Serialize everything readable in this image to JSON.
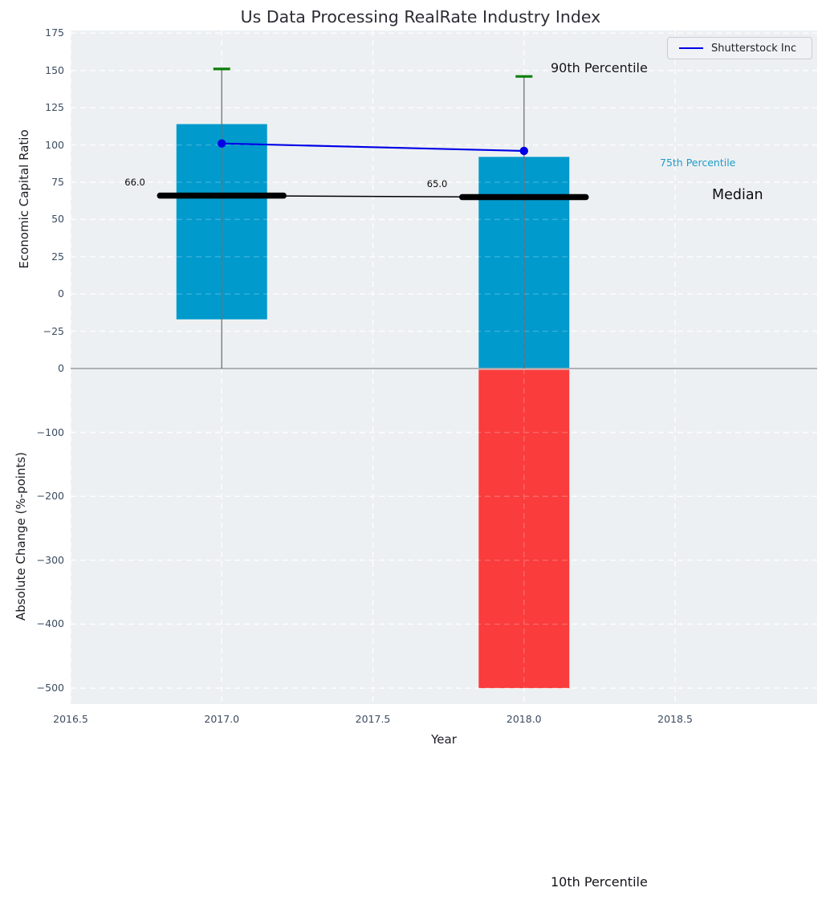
{
  "figure": {
    "title": "Us Data Processing RealRate Industry Index",
    "legend": {
      "label": "Shutterstock Inc",
      "line_color": "#0000e6",
      "position": "upper right"
    },
    "annotations": {
      "p90_label": "90th Percentile",
      "p75_label": "75th Percentile",
      "median_label": "Median",
      "p10_label": "10th Percentile"
    }
  },
  "chart_data": {
    "type": "bar",
    "subtype": "percentile-range bars with median marks and company line, two stacked panels sharing x axis",
    "title": "Us Data Processing RealRate Industry Index",
    "xlabel": "Year",
    "x": [
      2017,
      2018
    ],
    "xlim": [
      2016.5,
      2018.97
    ],
    "bar_width_years": 0.3,
    "grid": "white dashed, on",
    "background": "#edf0f2",
    "colors": {
      "range_bar": "#009acd",
      "negative_bar": "#fa3c3c",
      "p90_tick": "#0a7e0a",
      "whisker": "#6e6e6e",
      "median": "#000000",
      "series_line": "#0000e6",
      "tick_text": "#3c4c60"
    },
    "x_ticks": [
      {
        "v": 2016.5,
        "label": "2016.5"
      },
      {
        "v": 2017.0,
        "label": "2017.0"
      },
      {
        "v": 2017.5,
        "label": "2017.5"
      },
      {
        "v": 2018.0,
        "label": "2018.0"
      },
      {
        "v": 2018.5,
        "label": "2018.5"
      }
    ],
    "panels": [
      {
        "name": "economic-capital-ratio",
        "ylabel": "Economic Capital Ratio",
        "ylim": [
          -50,
          176.8
        ],
        "y_ticks": [
          {
            "v": 175,
            "label": "175"
          },
          {
            "v": 150,
            "label": "150"
          },
          {
            "v": 125,
            "label": "125"
          },
          {
            "v": 100,
            "label": "100"
          },
          {
            "v": 75,
            "label": "75"
          },
          {
            "v": 50,
            "label": "50"
          },
          {
            "v": 25,
            "label": "25"
          },
          {
            "v": 0,
            "label": "0"
          },
          {
            "v": -25,
            "label": "−25"
          }
        ],
        "bars": [
          {
            "x": 2017,
            "from": -17,
            "to": 114,
            "clipped_bottom": false
          },
          {
            "x": 2018,
            "from": -50,
            "to": 92,
            "clipped_bottom": true
          }
        ],
        "medians": [
          {
            "x": 2017,
            "value": 66.0,
            "label": "66.0"
          },
          {
            "x": 2018,
            "value": 65.0,
            "label": "65.0"
          }
        ],
        "p90_ticks": [
          {
            "x": 2017,
            "value": 151
          },
          {
            "x": 2018,
            "value": 146
          }
        ],
        "whiskers": [
          {
            "x": 2017,
            "top": 151,
            "bottom_clipped_at_axis": true
          },
          {
            "x": 2018,
            "top": 146,
            "bottom_clipped_at_axis": true
          }
        ],
        "series": [
          {
            "name": "Shutterstock Inc",
            "x": [
              2017,
              2018
            ],
            "y": [
              101,
              96
            ]
          }
        ]
      },
      {
        "name": "absolute-change",
        "ylabel": "Absolute Change (%-points)",
        "ylim": [
          -525,
          0
        ],
        "y_ticks": [
          {
            "v": 0,
            "label": "0"
          },
          {
            "v": -100,
            "label": "−100"
          },
          {
            "v": -200,
            "label": "−200"
          },
          {
            "v": -300,
            "label": "−300"
          },
          {
            "v": -400,
            "label": "−400"
          },
          {
            "v": -500,
            "label": "−500"
          }
        ],
        "bars": [
          {
            "x": 2018,
            "from": -500,
            "to": 0
          }
        ]
      }
    ]
  }
}
